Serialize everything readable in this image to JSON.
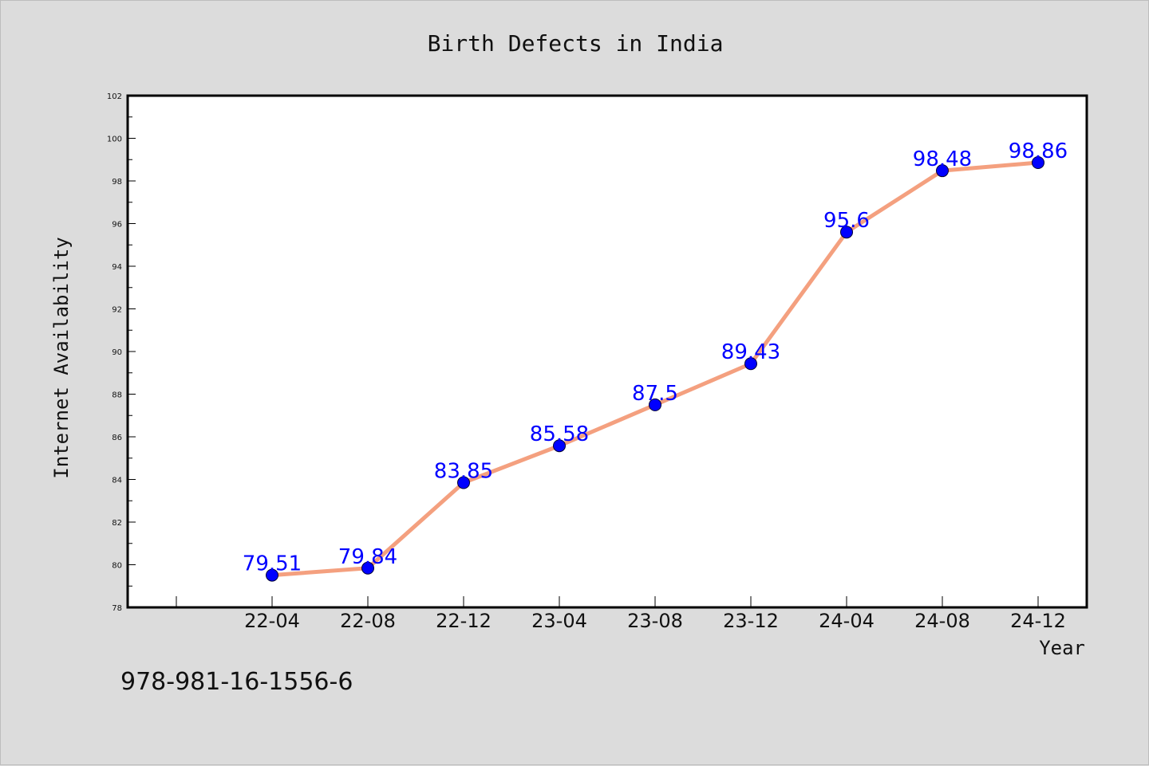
{
  "chart_data": {
    "type": "line",
    "title": "Birth Defects in India",
    "xlabel": "Year",
    "ylabel": "Internet Availability",
    "categories": [
      "22-04",
      "22-08",
      "22-12",
      "23-04",
      "23-08",
      "23-12",
      "24-04",
      "24-08",
      "24-12"
    ],
    "series": [
      {
        "values": [
          79.51,
          79.84,
          83.85,
          85.58,
          87.5,
          89.43,
          95.6,
          98.48,
          98.86
        ],
        "data_labels": [
          "79.51",
          "79.84",
          "83.85",
          "85.58",
          "87.5",
          "89.43",
          "95.6",
          "98.48",
          "98.86"
        ],
        "line_color": "#f4a07f",
        "marker_color": "#0000ff"
      }
    ],
    "ylim": [
      78,
      102
    ],
    "yticks": [
      "78",
      "80",
      "82",
      "84",
      "86",
      "88",
      "90",
      "92",
      "94",
      "96",
      "98",
      "100",
      "102"
    ],
    "grid": false,
    "legend": "none"
  },
  "footnote": "978-981-16-1556-6",
  "colors": {
    "background": "#dcdcdc",
    "plot_background": "#ffffff",
    "line": "#f4a07f",
    "marker": "#0000ff",
    "data_label": "#0000ff"
  }
}
